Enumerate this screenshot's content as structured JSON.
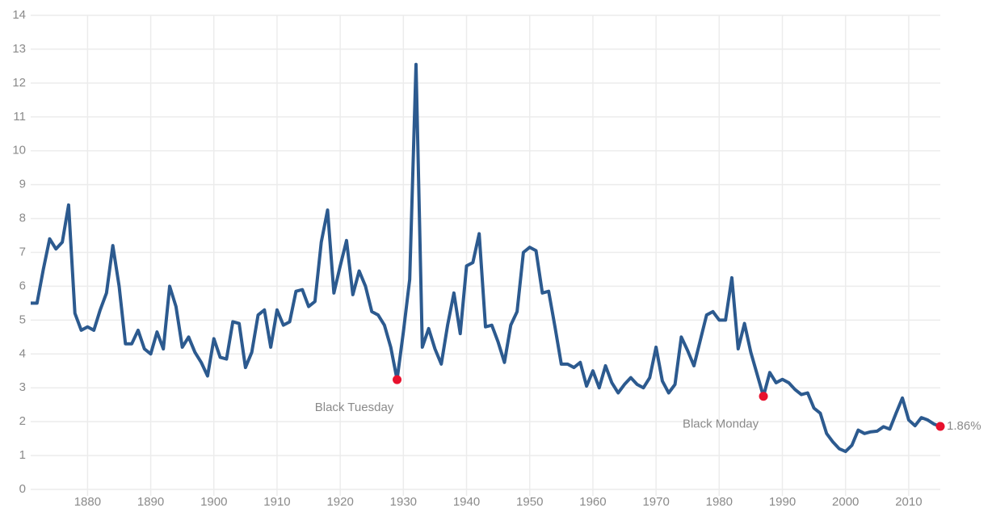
{
  "chart_data": {
    "type": "line",
    "x": [
      1871,
      1872,
      1873,
      1874,
      1875,
      1876,
      1877,
      1878,
      1879,
      1880,
      1881,
      1882,
      1883,
      1884,
      1885,
      1886,
      1887,
      1888,
      1889,
      1890,
      1891,
      1892,
      1893,
      1894,
      1895,
      1896,
      1897,
      1898,
      1899,
      1900,
      1901,
      1902,
      1903,
      1904,
      1905,
      1906,
      1907,
      1908,
      1909,
      1910,
      1911,
      1912,
      1913,
      1914,
      1915,
      1916,
      1917,
      1918,
      1919,
      1920,
      1921,
      1922,
      1923,
      1924,
      1925,
      1926,
      1927,
      1928,
      1929,
      1930,
      1931,
      1932,
      1933,
      1934,
      1935,
      1936,
      1937,
      1938,
      1939,
      1940,
      1941,
      1942,
      1943,
      1944,
      1945,
      1946,
      1947,
      1948,
      1949,
      1950,
      1951,
      1952,
      1953,
      1954,
      1955,
      1956,
      1957,
      1958,
      1959,
      1960,
      1961,
      1962,
      1963,
      1964,
      1965,
      1966,
      1967,
      1968,
      1969,
      1970,
      1971,
      1972,
      1973,
      1974,
      1975,
      1976,
      1977,
      1978,
      1979,
      1980,
      1981,
      1982,
      1983,
      1984,
      1985,
      1986,
      1987,
      1988,
      1989,
      1990,
      1991,
      1992,
      1993,
      1994,
      1995,
      1996,
      1997,
      1998,
      1999,
      2000,
      2001,
      2002,
      2003,
      2004,
      2005,
      2006,
      2007,
      2008,
      2009,
      2010,
      2011,
      2012,
      2013,
      2014,
      2015
    ],
    "series": [
      {
        "color": "#2c5a8f",
        "values": [
          5.5,
          5.5,
          6.5,
          7.4,
          7.1,
          7.3,
          8.4,
          5.2,
          4.7,
          4.8,
          4.7,
          5.3,
          5.8,
          7.2,
          6.0,
          4.3,
          4.3,
          4.7,
          4.15,
          4.0,
          4.65,
          4.15,
          6.0,
          5.4,
          4.2,
          4.5,
          4.05,
          3.75,
          3.35,
          4.45,
          3.9,
          3.85,
          4.95,
          4.9,
          3.6,
          4.05,
          5.15,
          5.3,
          4.2,
          5.3,
          4.85,
          4.95,
          5.85,
          5.9,
          5.4,
          5.55,
          7.3,
          8.25,
          5.8,
          6.6,
          7.35,
          5.75,
          6.45,
          6.0,
          5.25,
          5.15,
          4.85,
          4.2,
          3.24,
          4.65,
          6.2,
          12.55,
          4.2,
          4.75,
          4.15,
          3.7,
          4.85,
          5.8,
          4.6,
          6.6,
          6.7,
          7.55,
          4.8,
          4.85,
          4.35,
          3.75,
          4.85,
          5.25,
          7.0,
          7.15,
          7.05,
          5.8,
          5.85,
          4.8,
          3.7,
          3.7,
          3.6,
          3.75,
          3.05,
          3.5,
          3.0,
          3.65,
          3.15,
          2.85,
          3.1,
          3.3,
          3.1,
          3.0,
          3.3,
          4.2,
          3.2,
          2.85,
          3.1,
          4.5,
          4.1,
          3.65,
          4.4,
          5.15,
          5.25,
          5.0,
          5.0,
          6.25,
          4.15,
          4.9,
          4.05,
          3.4,
          2.75,
          3.45,
          3.15,
          3.25,
          3.15,
          2.95,
          2.8,
          2.85,
          2.4,
          2.25,
          1.65,
          1.4,
          1.2,
          1.12,
          1.3,
          1.75,
          1.65,
          1.7,
          1.72,
          1.85,
          1.78,
          2.25,
          2.7,
          2.05,
          1.88,
          2.12,
          2.05,
          1.93,
          1.86
        ]
      }
    ],
    "xlim": [
      1871,
      2015
    ],
    "xticks": [
      1880,
      1890,
      1900,
      1910,
      1920,
      1930,
      1940,
      1950,
      1960,
      1970,
      1980,
      1990,
      2000,
      2010
    ],
    "ylim": [
      0,
      14
    ],
    "yticks": [
      0,
      1,
      2,
      3,
      4,
      5,
      6,
      7,
      8,
      9,
      10,
      11,
      12,
      13,
      14
    ],
    "grid": true,
    "annotations": [
      {
        "text": "Black Tuesday",
        "x": 1929,
        "y": 3.24
      },
      {
        "text": "Black Monday",
        "x": 1987,
        "y": 2.75
      },
      {
        "text": "1.86%",
        "x": 2015,
        "y": 1.86
      }
    ],
    "annotation_color": "#e8112d"
  }
}
